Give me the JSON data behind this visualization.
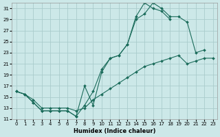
{
  "xlabel": "Humidex (Indice chaleur)",
  "bg_color": "#cce8e8",
  "grid_color": "#aacccc",
  "line_color": "#1a6b5a",
  "xlim": [
    -0.5,
    23.5
  ],
  "ylim": [
    11,
    32
  ],
  "yticks": [
    11,
    13,
    15,
    17,
    19,
    21,
    23,
    25,
    27,
    29,
    31
  ],
  "xticks": [
    0,
    1,
    2,
    3,
    4,
    5,
    6,
    7,
    8,
    9,
    10,
    11,
    12,
    13,
    14,
    15,
    16,
    17,
    18,
    19,
    20,
    21,
    22,
    23
  ],
  "line1_x": [
    0,
    1,
    2,
    3,
    4,
    5,
    6,
    7,
    8,
    9,
    10,
    11,
    12,
    13,
    14,
    15,
    16,
    17,
    18,
    19,
    20,
    21,
    22,
    23
  ],
  "line1_y": [
    16,
    15.5,
    14,
    12.5,
    12.5,
    12.5,
    12.5,
    11.5,
    17,
    13.5,
    19.5,
    22,
    22.5,
    24.5,
    29,
    30,
    32,
    31,
    29.5,
    29.5,
    28.5,
    23,
    23.5,
    null
  ],
  "line2_x": [
    0,
    1,
    2,
    3,
    4,
    5,
    6,
    7,
    8,
    9,
    10,
    11,
    12,
    13,
    14,
    15,
    16,
    17,
    18,
    19,
    20,
    21,
    22,
    23
  ],
  "line2_y": [
    16,
    15.5,
    14,
    12.5,
    12.5,
    12.5,
    12.5,
    11.5,
    13.5,
    16,
    20,
    22,
    22.5,
    24.5,
    29.5,
    32,
    31,
    30.5,
    29,
    null,
    null,
    null,
    null,
    null
  ],
  "line3_x": [
    0,
    1,
    2,
    3,
    4,
    5,
    6,
    7,
    8,
    9,
    10,
    11,
    12,
    13,
    14,
    15,
    16,
    17,
    18,
    19,
    20,
    21,
    22,
    23
  ],
  "line3_y": [
    16,
    15.5,
    14.5,
    13,
    13,
    13,
    13,
    12.5,
    13,
    14.5,
    15.5,
    16.5,
    17.5,
    18.5,
    19.5,
    20.5,
    21,
    21.5,
    22,
    22.5,
    21,
    21.5,
    22,
    22
  ]
}
